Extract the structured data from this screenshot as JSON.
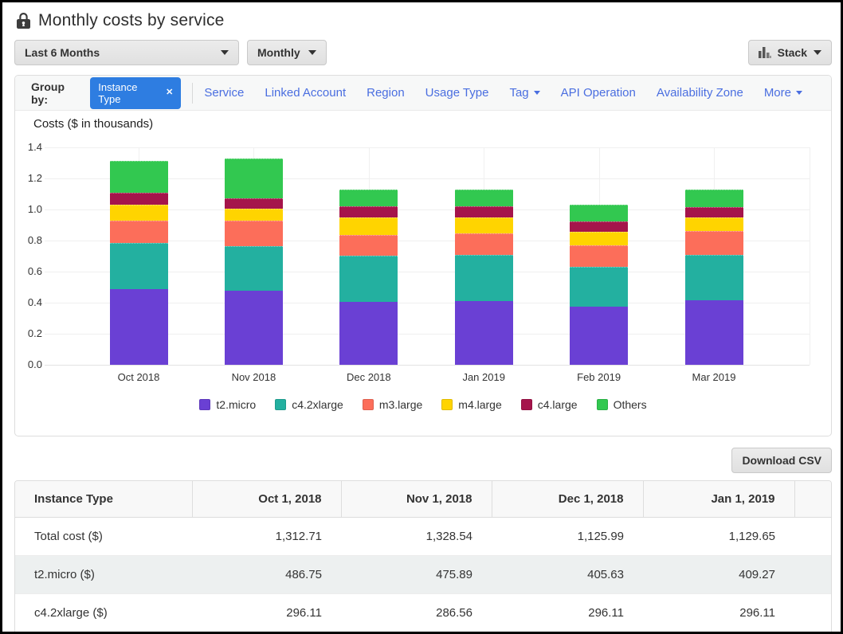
{
  "header": {
    "title": "Monthly costs by service"
  },
  "controls": {
    "date_range_label": "Last 6 Months",
    "granularity_label": "Monthly",
    "chart_style_label": "Stack"
  },
  "group_by": {
    "label": "Group by:",
    "active": {
      "label": "Instance Type",
      "remove_icon": "✕"
    },
    "options": [
      {
        "label": "Service",
        "has_menu": false
      },
      {
        "label": "Linked Account",
        "has_menu": false
      },
      {
        "label": "Region",
        "has_menu": false
      },
      {
        "label": "Usage Type",
        "has_menu": false
      },
      {
        "label": "Tag",
        "has_menu": true
      },
      {
        "label": "API Operation",
        "has_menu": false
      },
      {
        "label": "Availability Zone",
        "has_menu": false
      },
      {
        "label": "More",
        "has_menu": true
      }
    ]
  },
  "chart_data": {
    "type": "bar",
    "stacked": true,
    "title": "Costs ($ in thousands)",
    "categories": [
      "Oct 2018",
      "Nov 2018",
      "Dec 2018",
      "Jan 2019",
      "Feb 2019",
      "Mar 2019"
    ],
    "series": [
      {
        "name": "t2.micro",
        "color": "#6a40d4",
        "values": [
          486.75,
          475.89,
          405.63,
          409.27,
          376.0,
          418.0
        ]
      },
      {
        "name": "c4.2xlarge",
        "color": "#23b0a0",
        "values": [
          296.11,
          286.56,
          296.11,
          296.11,
          256.0,
          288.0
        ]
      },
      {
        "name": "m3.large",
        "color": "#fc6e5a",
        "values": [
          143.2,
          168.0,
          134.0,
          139.0,
          137.0,
          156.0
        ]
      },
      {
        "name": "m4.large",
        "color": "#ffd400",
        "values": [
          102.5,
          76.0,
          113.0,
          104.0,
          86.0,
          88.0
        ]
      },
      {
        "name": "c4.large",
        "color": "#a5144b",
        "values": [
          78.0,
          66.0,
          71.0,
          72.0,
          68.0,
          66.0
        ]
      },
      {
        "name": "Others",
        "color": "#32c850",
        "values": [
          206.15,
          256.09,
          106.25,
          109.27,
          106.0,
          114.0
        ]
      }
    ],
    "totals": [
      1312.71,
      1328.54,
      1125.99,
      1129.65,
      1029.0,
      1130.0
    ],
    "ylim": [
      0,
      1.4
    ],
    "yticks": [
      "0.0",
      "0.2",
      "0.4",
      "0.6",
      "0.8",
      "1.0",
      "1.2",
      "1.4"
    ],
    "value_axis_scale": 0.001,
    "grid": true,
    "legend_position": "bottom"
  },
  "download": {
    "label": "Download CSV"
  },
  "table": {
    "columns": [
      "Instance Type",
      "Oct 1, 2018",
      "Nov 1, 2018",
      "Dec 1, 2018",
      "Jan 1, 2019"
    ],
    "rows": [
      {
        "label": "Total cost ($)",
        "values": [
          "1,312.71",
          "1,328.54",
          "1,125.99",
          "1,129.65"
        ]
      },
      {
        "label": "t2.micro ($)",
        "values": [
          "486.75",
          "475.89",
          "405.63",
          "409.27"
        ]
      },
      {
        "label": "c4.2xlarge ($)",
        "values": [
          "296.11",
          "286.56",
          "296.11",
          "296.11"
        ]
      }
    ]
  },
  "colors": {
    "filter_pill": "#2e7de1",
    "group_by_link": "#4a6ee0",
    "panel_border": "#dddddd",
    "stripe_row": "#edf0f0",
    "frame": "#000000"
  }
}
